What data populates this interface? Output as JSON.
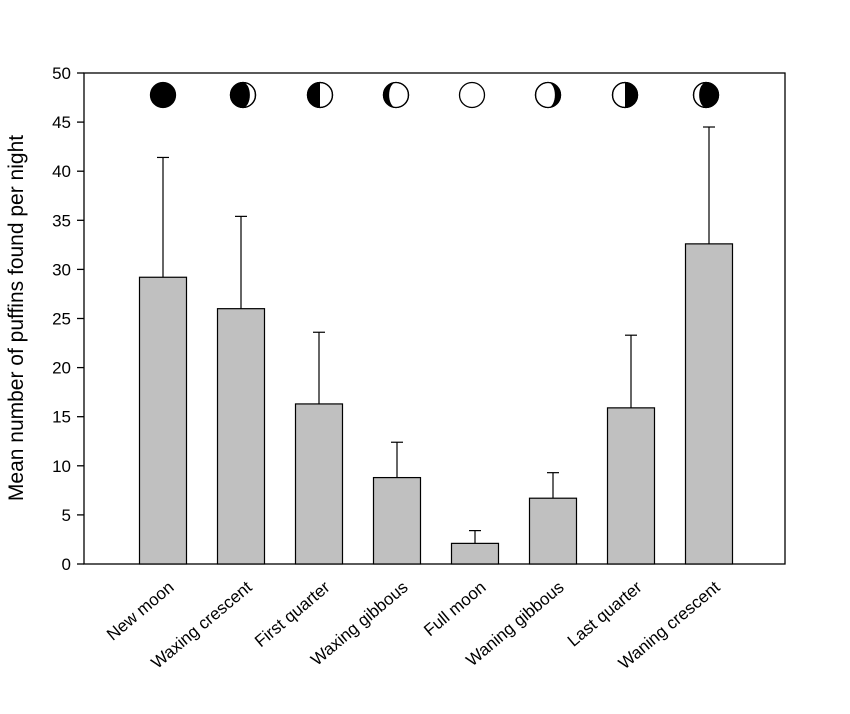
{
  "chart_data": {
    "type": "bar",
    "title": "",
    "xlabel": "",
    "ylabel": "Mean number of puffins found per night",
    "ylim": [
      0,
      50
    ],
    "yticks": [
      0,
      5,
      10,
      15,
      20,
      25,
      30,
      35,
      40,
      45,
      50
    ],
    "grid": false,
    "categories": [
      "New moon",
      "Waxing crescent",
      "First quarter",
      "Waxing gibbous",
      "Full moon",
      "Waning gibbous",
      "Last quarter",
      "Waning crescent"
    ],
    "values": [
      29.2,
      26.0,
      16.3,
      8.8,
      2.1,
      6.7,
      15.9,
      32.6
    ],
    "error_upper": [
      41.4,
      35.4,
      23.6,
      12.4,
      3.4,
      9.3,
      23.3,
      44.5
    ],
    "moon_phase_icons": [
      "new-moon-icon",
      "waxing-crescent-icon",
      "first-quarter-icon",
      "waxing-gibbous-icon",
      "full-moon-icon",
      "waning-gibbous-icon",
      "last-quarter-icon",
      "waning-crescent-icon"
    ],
    "colors": {
      "bar_fill": "#c0c0c0",
      "stroke": "#000000"
    }
  }
}
